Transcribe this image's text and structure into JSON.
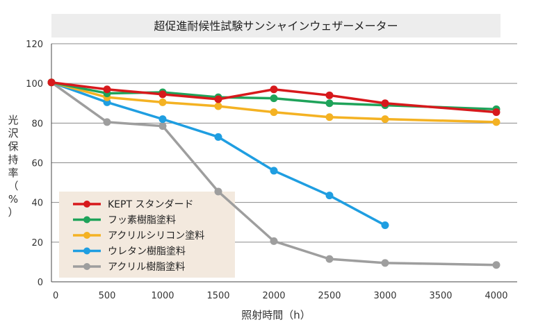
{
  "chart_data": {
    "type": "line",
    "title": "超促進耐候性試験サンシャインウェザーメーター",
    "xlabel": "照射時間（h）",
    "ylabel": "光沢保持率（%）",
    "x_ticks": [
      "0",
      "500",
      "1000",
      "1500",
      "2000",
      "2500",
      "3000",
      "3500",
      "4000"
    ],
    "y_ticks": [
      "0",
      "20",
      "40",
      "60",
      "80",
      "100",
      "120"
    ],
    "xlim": [
      0,
      4000
    ],
    "ylim": [
      0,
      120
    ],
    "grid": true,
    "legend_position": "bottom-left",
    "series": [
      {
        "name": "KEPT スタンダード",
        "color": "#d7191c",
        "x": [
          0,
          500,
          1000,
          1500,
          2000,
          2500,
          3000,
          4000
        ],
        "values": [
          100.5,
          97,
          94.5,
          92,
          97,
          94,
          90,
          85.5
        ]
      },
      {
        "name": "フッ素樹脂塗料",
        "color": "#1fa35a",
        "x": [
          0,
          500,
          1000,
          1500,
          2000,
          2500,
          3000,
          4000
        ],
        "values": [
          100.5,
          95,
          95.5,
          93,
          92.5,
          90,
          89,
          87
        ]
      },
      {
        "name": "アクリルシリコン塗料",
        "color": "#f4b223",
        "x": [
          0,
          500,
          1000,
          1500,
          2000,
          2500,
          3000,
          4000
        ],
        "values": [
          100.5,
          93,
          90.5,
          88.5,
          85.5,
          83,
          82,
          80.5
        ]
      },
      {
        "name": "ウレタン樹脂塗料",
        "color": "#1f9ee1",
        "x": [
          0,
          500,
          1000,
          1500,
          2000,
          2500,
          3000
        ],
        "values": [
          100.5,
          90.5,
          82,
          73,
          56,
          43.5,
          28.5
        ]
      },
      {
        "name": "アクリル樹脂塗料",
        "color": "#9e9e9e",
        "x": [
          0,
          500,
          1000,
          1500,
          2000,
          2500,
          3000,
          4000
        ],
        "values": [
          100.5,
          80.5,
          78.5,
          45.5,
          20.5,
          11.5,
          9.5,
          8.5
        ]
      }
    ]
  }
}
